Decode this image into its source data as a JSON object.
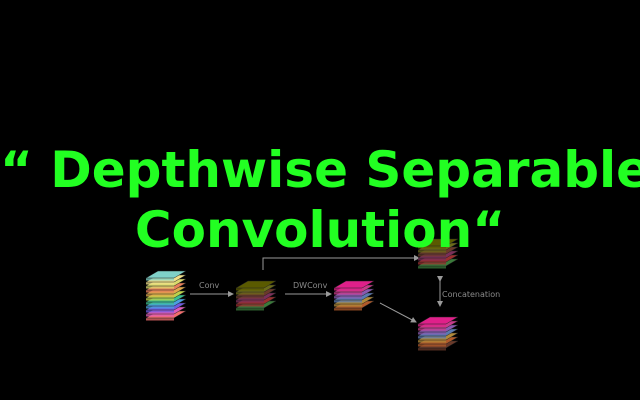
{
  "title": {
    "line1": "“ Depthwise Separable",
    "line2": "Convolution“"
  },
  "diagram": {
    "edge_labels": {
      "conv": "Conv",
      "dwconv": "DWConv",
      "concat": "Concatenation"
    },
    "line_color": "#9a9a9a",
    "stacks": [
      {
        "name": "input-stack",
        "colors": [
          "#f26d6d",
          "#e05bb8",
          "#6e5be0",
          "#4aa0e0",
          "#3bbf8f",
          "#bcd24a",
          "#e0a84a",
          "#e67e5b",
          "#d9d96c",
          "#f0e08a",
          "#7fd1c8"
        ]
      },
      {
        "name": "conv-output-stack",
        "colors": [
          "#3a7a3a",
          "#9b2f2f",
          "#7a2f5a",
          "#6a3a2a",
          "#6b6b1a",
          "#5a5a00"
        ]
      },
      {
        "name": "dwconv-output-stack",
        "colors": [
          "#b05a2a",
          "#b08a3a",
          "#5a7ab0",
          "#8a5ab0",
          "#c93a8a",
          "#e0208a"
        ]
      },
      {
        "name": "concat-top-stack",
        "colors": [
          "#3a7a3a",
          "#9b2f2f",
          "#7a2f5a",
          "#6a3a2a",
          "#6b6b1a",
          "#5a5a00"
        ]
      },
      {
        "name": "concat-bottom-stack",
        "colors": [
          "#6a3a2a",
          "#b05a2a",
          "#b08a3a",
          "#5a7ab0",
          "#8a5ab0",
          "#c93a8a",
          "#e0208a"
        ]
      }
    ]
  }
}
